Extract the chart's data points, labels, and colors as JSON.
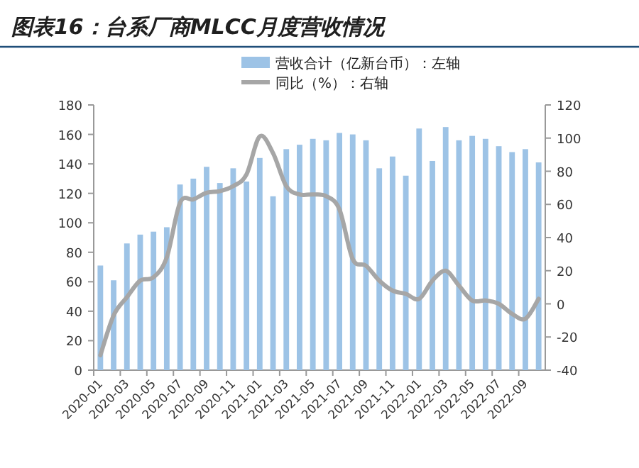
{
  "chart_data": {
    "type": "bar",
    "title": "图表16：台系厂商MLCC月度营收情况",
    "categories": [
      "2020-01",
      null,
      "2020-03",
      null,
      "2020-05",
      null,
      "2020-07",
      null,
      "2020-09",
      null,
      "2020-11",
      null,
      "2021-01",
      null,
      "2021-03",
      null,
      "2021-05",
      null,
      "2021-07",
      null,
      "2021-09",
      null,
      "2021-11",
      null,
      "2022-01",
      null,
      "2022-03",
      null,
      "2022-05",
      null,
      "2022-07",
      null,
      "2022-09",
      null
    ],
    "series": [
      {
        "name": "营收合计（亿新台币）：左轴",
        "color": "#9dc3e6",
        "values": [
          71,
          61,
          86,
          92,
          94,
          97,
          126,
          130,
          138,
          127,
          137,
          128,
          144,
          118,
          150,
          153,
          157,
          156,
          161,
          160,
          156,
          137,
          145,
          132,
          164,
          142,
          165,
          156,
          159,
          157,
          152,
          148,
          150,
          141
        ]
      },
      {
        "name": "同比（%）：右轴",
        "type": "line",
        "axis": "y2",
        "color": "#a6a6a6",
        "values": [
          -31,
          -7,
          4,
          14,
          16,
          28,
          61,
          63,
          67,
          68,
          71,
          78,
          101,
          91,
          71,
          66,
          66,
          65,
          57,
          27,
          23,
          14,
          8,
          6,
          3,
          14,
          20,
          11,
          2,
          2,
          0,
          -6,
          -9,
          3
        ]
      }
    ],
    "ylim": [
      0,
      180
    ],
    "yticks": [
      0,
      20,
      40,
      60,
      80,
      100,
      120,
      140,
      160,
      180
    ],
    "y2lim": [
      -40,
      120
    ],
    "y2ticks": [
      -40,
      -20,
      0,
      20,
      40,
      60,
      80,
      100,
      120
    ],
    "legend": "top",
    "grid": false
  }
}
